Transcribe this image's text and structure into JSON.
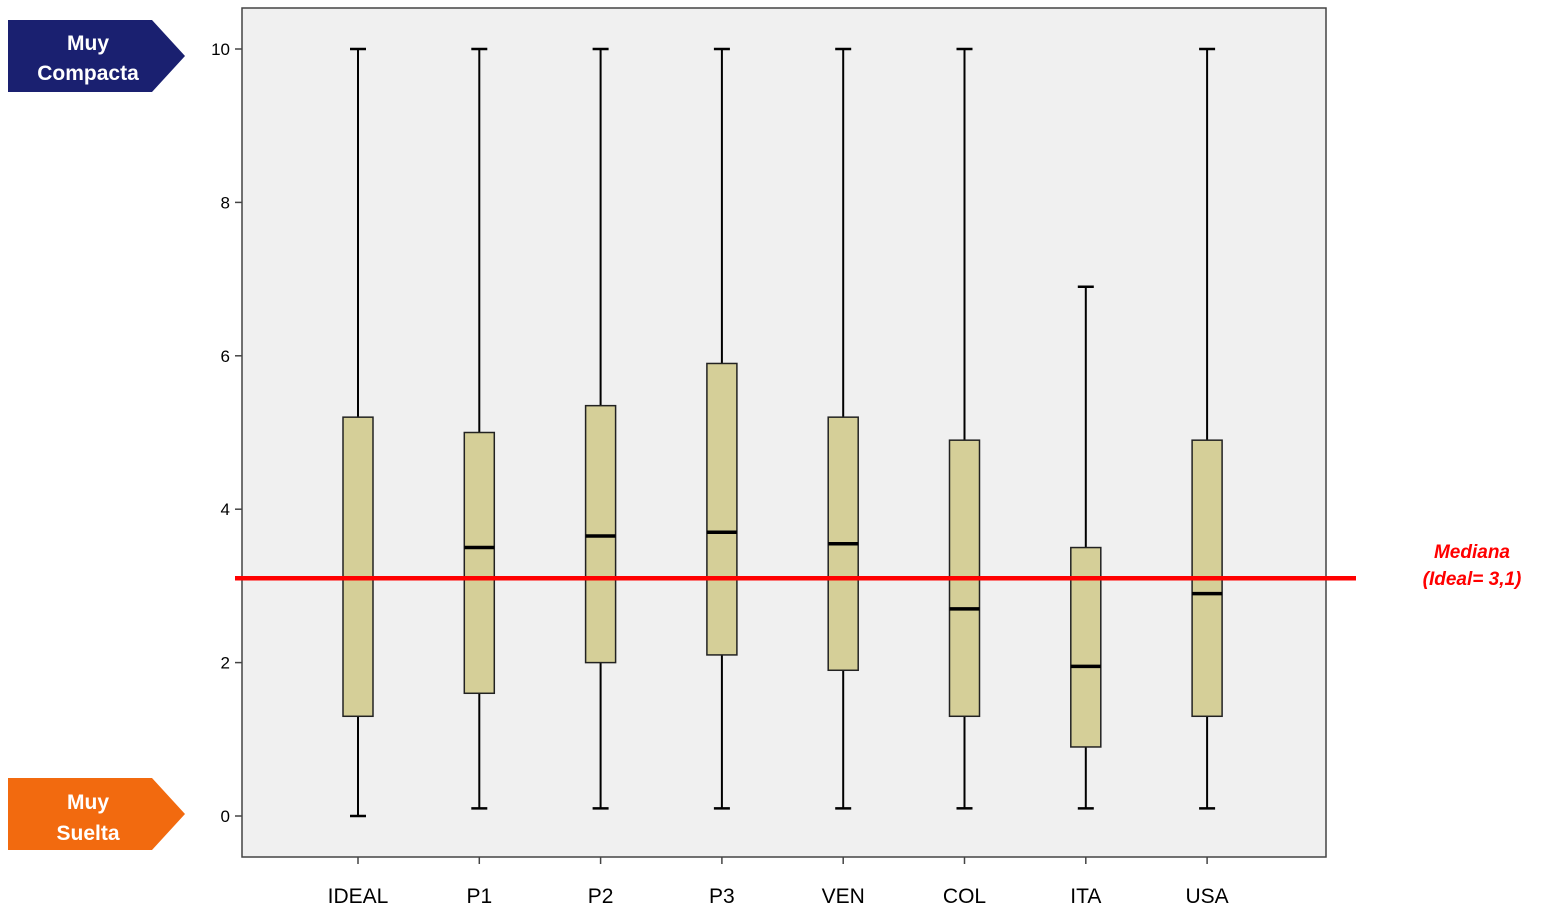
{
  "tags": {
    "top": {
      "line1": "Muy",
      "line2": "Compacta",
      "color": "#1a2070"
    },
    "bottom": {
      "line1": "Muy",
      "line2": "Suelta",
      "color": "#f26a0f"
    }
  },
  "reference": {
    "line1": "Mediana",
    "line2": "(Ideal=  3,1)",
    "value": 3.1,
    "color": "#ff0000"
  },
  "chart_data": {
    "type": "boxplot",
    "categories": [
      "IDEAL",
      "P1",
      "P2",
      "P3",
      "VEN",
      "COL",
      "ITA",
      "USA"
    ],
    "yticks": [
      "0",
      "2",
      "4",
      "6",
      "8",
      "10"
    ],
    "ylim": [
      -0.5,
      10.6
    ],
    "grid": false,
    "box_color": "#d5cf98",
    "plot_background": "#f0f0f0",
    "boxes": [
      {
        "category": "IDEAL",
        "min": 0.0,
        "q1": 1.3,
        "median": 3.1,
        "q3": 5.2,
        "max": 10.0
      },
      {
        "category": "P1",
        "min": 0.1,
        "q1": 1.6,
        "median": 3.5,
        "q3": 5.0,
        "max": 10.0
      },
      {
        "category": "P2",
        "min": 0.1,
        "q1": 2.0,
        "median": 3.65,
        "q3": 5.35,
        "max": 10.0
      },
      {
        "category": "P3",
        "min": 0.1,
        "q1": 2.1,
        "median": 3.7,
        "q3": 5.9,
        "max": 10.0
      },
      {
        "category": "VEN",
        "min": 0.1,
        "q1": 1.9,
        "median": 3.55,
        "q3": 5.2,
        "max": 10.0
      },
      {
        "category": "COL",
        "min": 0.1,
        "q1": 1.3,
        "median": 2.7,
        "q3": 4.9,
        "max": 10.0
      },
      {
        "category": "ITA",
        "min": 0.1,
        "q1": 0.9,
        "median": 1.95,
        "q3": 3.5,
        "max": 6.9
      },
      {
        "category": "USA",
        "min": 0.1,
        "q1": 1.3,
        "median": 2.9,
        "q3": 4.9,
        "max": 10.0
      }
    ]
  }
}
